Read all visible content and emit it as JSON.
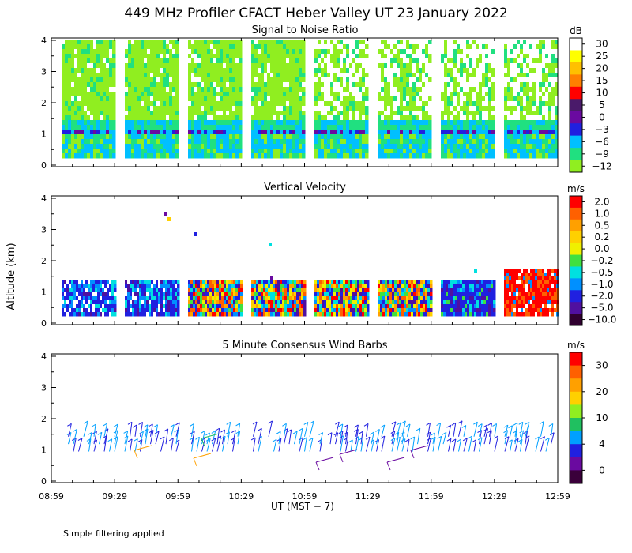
{
  "figure": {
    "title": "449 MHz Profiler CFACT Heber Valley UT 23 January 2022",
    "y_axis_label": "Altitude (km)",
    "x_axis_label": "UT  (MST − 7)",
    "footnote": "Simple filtering applied"
  },
  "chart_data": [
    {
      "type": "heatmap",
      "title": "Signal to Noise Ratio",
      "ylim": [
        0,
        4
      ],
      "yticks": [
        "0",
        "1",
        "2",
        "3",
        "4"
      ],
      "x_ticks": [
        "08:59",
        "09:29",
        "09:59",
        "10:29",
        "10:59",
        "11:29",
        "11:59",
        "12:29",
        "12:59"
      ],
      "colorbar": {
        "unit": "dB",
        "labels": [
          "30",
          "25",
          "20",
          "15",
          "10",
          "5",
          "0",
          "−3",
          "−6",
          "−9",
          "−12"
        ],
        "colors": [
          "#ffffff",
          "#ffff00",
          "#ffc000",
          "#ff8000",
          "#ff0000",
          "#4a1a6a",
          "#6a0aa0",
          "#2020e0",
          "#00c0ff",
          "#20e080",
          "#90ee20"
        ]
      }
    },
    {
      "type": "heatmap",
      "title": "Vertical Velocity",
      "ylim": [
        0,
        4
      ],
      "yticks": [
        "0",
        "1",
        "2",
        "3",
        "4"
      ],
      "colorbar": {
        "unit": "m/s",
        "labels": [
          "2.0",
          "1.0",
          "0.5",
          "0.2",
          "0.0",
          "−0.2",
          "−0.5",
          "−1.0",
          "−2.0",
          "−5.0",
          "−10.0"
        ],
        "colors": [
          "#ff0000",
          "#ff6000",
          "#ffa000",
          "#ffd000",
          "#f0f000",
          "#40e040",
          "#00e0e0",
          "#0090ff",
          "#2020e0",
          "#5010a0",
          "#300030"
        ]
      }
    },
    {
      "type": "scatter",
      "title": "5 Minute Consensus Wind Barbs",
      "ylim": [
        0,
        4
      ],
      "yticks": [
        "0",
        "1",
        "2",
        "3",
        "4"
      ],
      "colorbar": {
        "unit": "m/s",
        "labels": [
          "30",
          "20",
          "10",
          "4",
          "0"
        ],
        "colors": [
          "#ff0000",
          "#ff6000",
          "#ffa000",
          "#ffd000",
          "#90ee20",
          "#20c060",
          "#00a0ff",
          "#2020e0",
          "#6a0aa0",
          "#3a003a"
        ]
      }
    }
  ]
}
